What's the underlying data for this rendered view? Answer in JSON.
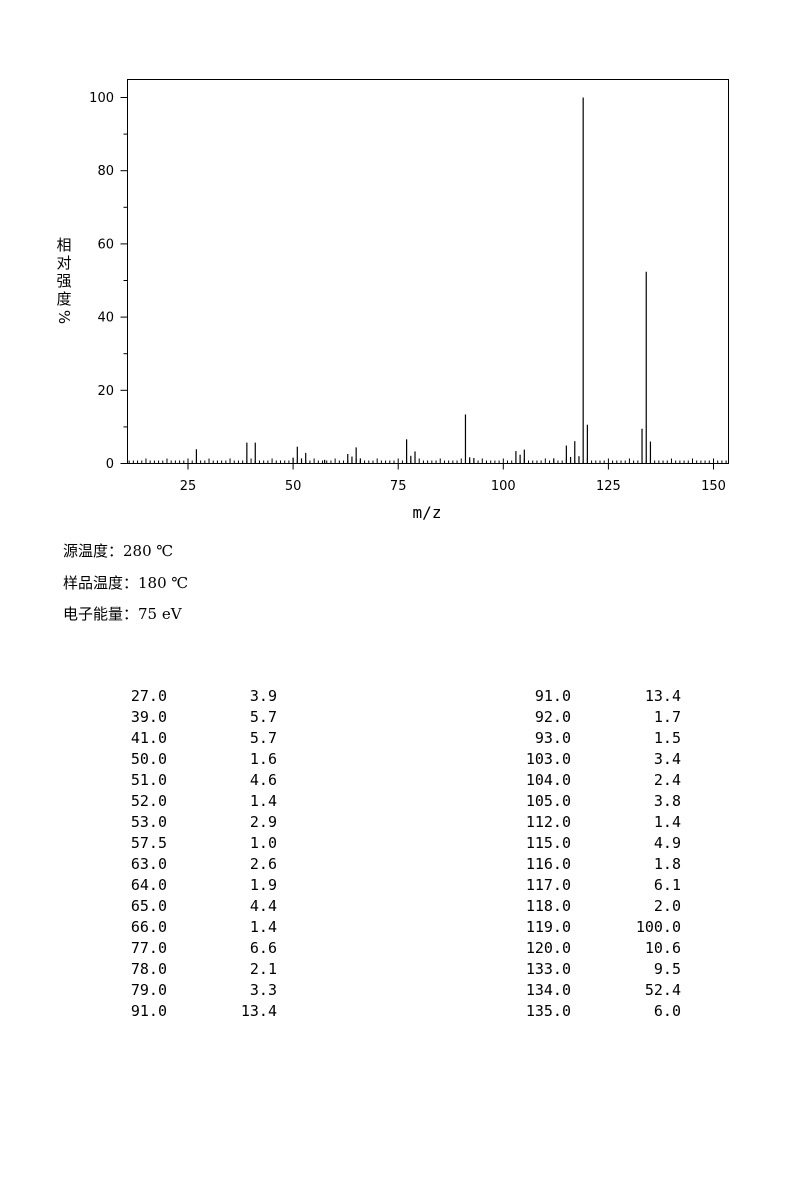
{
  "chart_data": {
    "type": "bar",
    "xlabel": "m/z",
    "ylabel_chars": [
      "相",
      "对",
      "强",
      "度",
      "%"
    ],
    "xlim": [
      10,
      153
    ],
    "ylim": [
      0,
      105
    ],
    "x_ticks": [
      25,
      50,
      75,
      100,
      125,
      150
    ],
    "y_ticks": [
      0,
      20,
      40,
      60,
      80,
      100
    ],
    "peaks": [
      {
        "mz": 27.0,
        "intensity": 3.9
      },
      {
        "mz": 39.0,
        "intensity": 5.7
      },
      {
        "mz": 41.0,
        "intensity": 5.7
      },
      {
        "mz": 50.0,
        "intensity": 1.6
      },
      {
        "mz": 51.0,
        "intensity": 4.6
      },
      {
        "mz": 52.0,
        "intensity": 1.4
      },
      {
        "mz": 53.0,
        "intensity": 2.9
      },
      {
        "mz": 57.5,
        "intensity": 1.0
      },
      {
        "mz": 63.0,
        "intensity": 2.6
      },
      {
        "mz": 64.0,
        "intensity": 1.9
      },
      {
        "mz": 65.0,
        "intensity": 4.4
      },
      {
        "mz": 66.0,
        "intensity": 1.4
      },
      {
        "mz": 77.0,
        "intensity": 6.6
      },
      {
        "mz": 78.0,
        "intensity": 2.1
      },
      {
        "mz": 79.0,
        "intensity": 3.3
      },
      {
        "mz": 91.0,
        "intensity": 13.4
      },
      {
        "mz": 92.0,
        "intensity": 1.7
      },
      {
        "mz": 93.0,
        "intensity": 1.5
      },
      {
        "mz": 103.0,
        "intensity": 3.4
      },
      {
        "mz": 104.0,
        "intensity": 2.4
      },
      {
        "mz": 105.0,
        "intensity": 3.8
      },
      {
        "mz": 112.0,
        "intensity": 1.4
      },
      {
        "mz": 115.0,
        "intensity": 4.9
      },
      {
        "mz": 116.0,
        "intensity": 1.8
      },
      {
        "mz": 117.0,
        "intensity": 6.1
      },
      {
        "mz": 118.0,
        "intensity": 2.0
      },
      {
        "mz": 119.0,
        "intensity": 100.0
      },
      {
        "mz": 120.0,
        "intensity": 10.6
      },
      {
        "mz": 133.0,
        "intensity": 9.5
      },
      {
        "mz": 134.0,
        "intensity": 52.4
      },
      {
        "mz": 135.0,
        "intensity": 6.0
      }
    ]
  },
  "conditions": {
    "source_temp": "源温度：280 ℃",
    "sample_temp": "样品温度：180 ℃",
    "electron_energy": "电子能量：75 eV"
  },
  "table": {
    "left": [
      [
        "27.0",
        "3.9"
      ],
      [
        "39.0",
        "5.7"
      ],
      [
        "41.0",
        "5.7"
      ],
      [
        "50.0",
        "1.6"
      ],
      [
        "51.0",
        "4.6"
      ],
      [
        "52.0",
        "1.4"
      ],
      [
        "53.0",
        "2.9"
      ],
      [
        "57.5",
        "1.0"
      ],
      [
        "63.0",
        "2.6"
      ],
      [
        "64.0",
        "1.9"
      ],
      [
        "65.0",
        "4.4"
      ],
      [
        "66.0",
        "1.4"
      ],
      [
        "77.0",
        "6.6"
      ],
      [
        "78.0",
        "2.1"
      ],
      [
        "79.0",
        "3.3"
      ],
      [
        "91.0",
        "13.4"
      ]
    ],
    "right": [
      [
        "91.0",
        "13.4"
      ],
      [
        "92.0",
        "1.7"
      ],
      [
        "93.0",
        "1.5"
      ],
      [
        "103.0",
        "3.4"
      ],
      [
        "104.0",
        "2.4"
      ],
      [
        "105.0",
        "3.8"
      ],
      [
        "112.0",
        "1.4"
      ],
      [
        "115.0",
        "4.9"
      ],
      [
        "116.0",
        "1.8"
      ],
      [
        "117.0",
        "6.1"
      ],
      [
        "118.0",
        "2.0"
      ],
      [
        "119.0",
        "100.0"
      ],
      [
        "120.0",
        "10.6"
      ],
      [
        "133.0",
        "9.5"
      ],
      [
        "134.0",
        "52.4"
      ],
      [
        "135.0",
        "6.0"
      ]
    ]
  }
}
